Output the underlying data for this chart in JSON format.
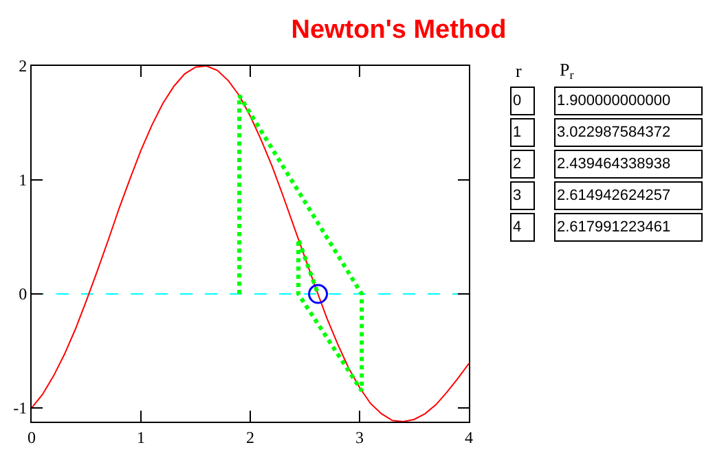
{
  "chart_data": {
    "type": "line",
    "title": "Newton's Method",
    "xlim": [
      0,
      4
    ],
    "xticks": [
      0,
      1,
      2,
      3,
      4
    ],
    "ylim": [
      -1.12,
      2
    ],
    "yticks": [
      -1,
      0,
      1,
      2
    ],
    "grid": false,
    "series": [
      {
        "color": "#ff0000",
        "line_style": "solid",
        "marker": "none",
        "x": [
          0,
          0.1,
          0.2,
          0.3,
          0.4,
          0.5,
          0.6,
          0.7,
          0.8,
          0.9,
          1.0,
          1.1,
          1.2,
          1.3,
          1.4,
          1.5,
          1.6,
          1.7,
          1.8,
          1.9,
          2.0,
          2.1,
          2.2,
          2.3,
          2.4,
          2.5,
          2.6,
          2.7,
          2.8,
          2.9,
          3.0,
          3.1,
          3.2,
          3.3,
          3.4,
          3.5,
          3.6,
          3.7,
          3.8,
          3.9,
          4.0
        ],
        "values": [
          -1,
          -0.88,
          -0.72,
          -0.53,
          -0.31,
          -0.06,
          0.2,
          0.47,
          0.75,
          1.01,
          1.26,
          1.48,
          1.67,
          1.82,
          1.93,
          1.99,
          2.0,
          1.96,
          1.87,
          1.74,
          1.56,
          1.35,
          1.12,
          0.86,
          0.59,
          0.32,
          0.05,
          -0.21,
          -0.44,
          -0.65,
          -0.82,
          -0.96,
          -1.05,
          -1.11,
          -1.12,
          -1.1,
          -1.05,
          -0.97,
          -0.86,
          -0.74,
          -0.61
        ]
      },
      {
        "color": "#00ff00",
        "line_style": "dotted",
        "marker": "none",
        "x": [
          1.9,
          1.9,
          3.02,
          3.02,
          2.44,
          2.44,
          2.62
        ],
        "values": [
          0,
          1.74,
          0,
          -0.85,
          0,
          0.48,
          0
        ]
      },
      {
        "type": "scatter",
        "color": "#0000ff",
        "marker": "circle",
        "x": [
          2.62
        ],
        "values": [
          0
        ]
      }
    ],
    "ref_lines": [
      {
        "axis": "y",
        "value": 0,
        "color": "#00ffff",
        "line_style": "dashed"
      }
    ],
    "annotations": [
      "r",
      "P$_{r}$",
      "0",
      "1.900000000000",
      "1",
      "3.022987584372",
      "2",
      "2.439464338938",
      "3",
      "2.614942624257",
      "4",
      "2.617991223461"
    ]
  }
}
